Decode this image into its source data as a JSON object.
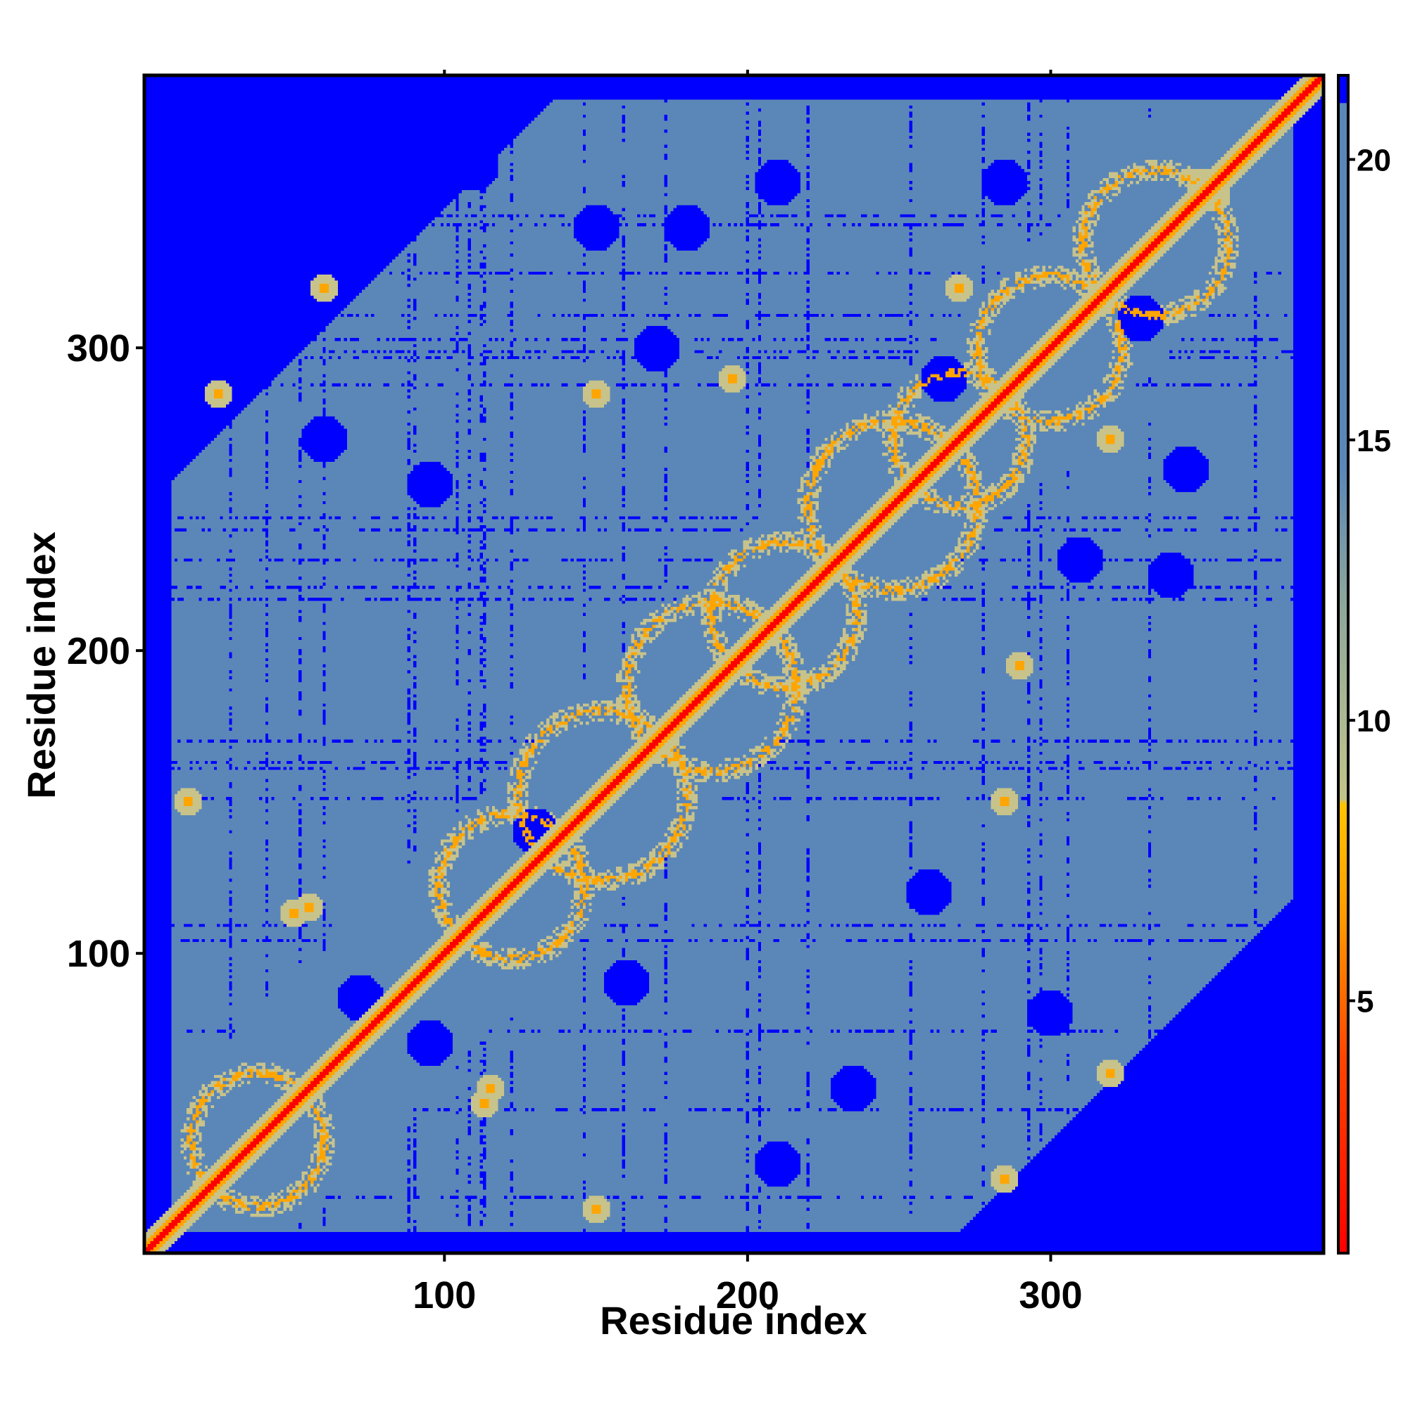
{
  "chart_data": {
    "type": "heatmap",
    "title": "",
    "xlabel": "Residue index",
    "ylabel": "Residue index",
    "n_residues": 390,
    "xlim": [
      1,
      390
    ],
    "ylim": [
      1,
      390
    ],
    "x_ticks": [
      100,
      200,
      300
    ],
    "y_ticks": [
      100,
      200,
      300
    ],
    "x_tick_labels": [
      "100",
      "200",
      "300"
    ],
    "y_tick_labels": [
      "100",
      "200",
      "300"
    ],
    "top_minor_ticks": [
      100,
      200,
      300
    ],
    "colorbar": {
      "range": [
        0.5,
        21.5
      ],
      "ticks": [
        5,
        10,
        15,
        20
      ],
      "tick_labels": [
        "5",
        "10",
        "15",
        "20"
      ],
      "stops": [
        {
          "value": 0.5,
          "color": "#ff0000"
        },
        {
          "value": 4.0,
          "color": "#ff4500"
        },
        {
          "value": 6.5,
          "color": "#ff9a00"
        },
        {
          "value": 8.5,
          "color": "#ffc400"
        },
        {
          "value": 8.6,
          "color": "#c2c48a"
        },
        {
          "value": 12.0,
          "color": "#8ea89a"
        },
        {
          "value": 14.5,
          "color": "#5b87b8"
        },
        {
          "value": 21.0,
          "color": "#5b87b8"
        },
        {
          "value": 21.01,
          "color": "#0000ff"
        },
        {
          "value": 21.5,
          "color": "#0000ff"
        }
      ]
    },
    "colors": {
      "diagonal": "#ff0000",
      "contact": "#ffa500",
      "near": "#c8c38a",
      "mid": "#5b87b8",
      "far": "#0000ff"
    },
    "features": {
      "helix_rings": [
        {
          "center": [
            38,
            38
          ],
          "radius": 22
        },
        {
          "center": [
            122,
            122
          ],
          "radius": 24
        },
        {
          "center": [
            152,
            152
          ],
          "radius": 28
        },
        {
          "center": [
            188,
            188
          ],
          "radius": 28
        },
        {
          "center": [
            212,
            212
          ],
          "radius": 24
        },
        {
          "center": [
            248,
            248
          ],
          "radius": 28
        },
        {
          "center": [
            270,
            270
          ],
          "radius": 22
        },
        {
          "center": [
            300,
            300
          ],
          "radius": 24
        },
        {
          "center": [
            335,
            335
          ],
          "radius": 24
        }
      ],
      "contact_spots": [
        [
          25,
          285
        ],
        [
          285,
          25
        ],
        [
          113,
          50
        ],
        [
          50,
          113
        ],
        [
          150,
          285
        ],
        [
          285,
          150
        ],
        [
          115,
          55
        ],
        [
          55,
          115
        ],
        [
          320,
          270
        ],
        [
          270,
          320
        ],
        [
          195,
          290
        ],
        [
          290,
          195
        ],
        [
          15,
          150
        ],
        [
          150,
          15
        ],
        [
          355,
          350
        ],
        [
          350,
          355
        ],
        [
          320,
          60
        ],
        [
          60,
          320
        ]
      ],
      "far_blobs": [
        [
          30,
          310
        ],
        [
          60,
          270
        ],
        [
          95,
          255
        ],
        [
          110,
          360
        ],
        [
          150,
          340
        ],
        [
          210,
          355
        ],
        [
          95,
          70
        ],
        [
          72,
          85
        ],
        [
          130,
          140
        ],
        [
          180,
          340
        ],
        [
          170,
          300
        ],
        [
          265,
          290
        ],
        [
          310,
          230
        ],
        [
          340,
          225
        ],
        [
          260,
          120
        ],
        [
          300,
          80
        ],
        [
          330,
          310
        ],
        [
          235,
          55
        ],
        [
          285,
          355
        ],
        [
          345,
          260
        ],
        [
          210,
          30
        ],
        [
          160,
          90
        ]
      ],
      "far_corners": [
        {
          "corner": "top-left",
          "extent": 90
        },
        {
          "corner": "bottom-right",
          "extent": 80
        }
      ]
    }
  }
}
